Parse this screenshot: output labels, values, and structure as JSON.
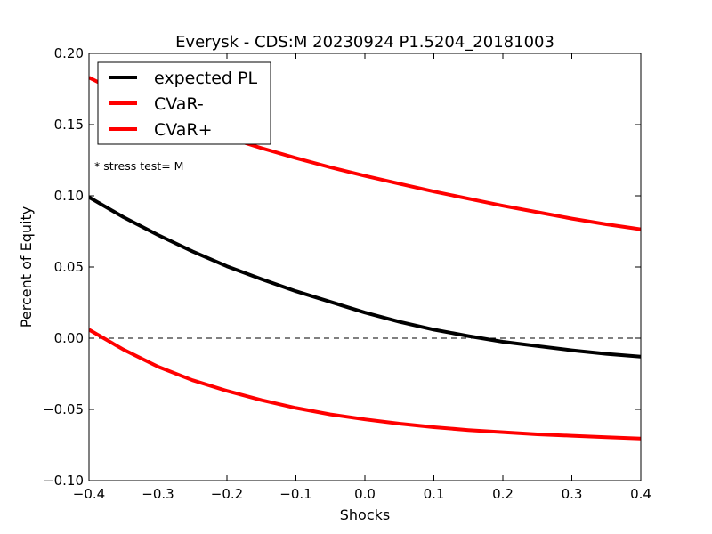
{
  "chart_data": {
    "type": "line",
    "title": "Everysk - CDS:M 20230924 P1.5204_20181003",
    "xlabel": "Shocks",
    "ylabel": "Percent of Equity",
    "xlim": [
      -0.4,
      0.4
    ],
    "ylim": [
      -0.1,
      0.2
    ],
    "xticks": [
      -0.4,
      -0.3,
      -0.2,
      -0.1,
      0.0,
      0.1,
      0.2,
      0.3,
      0.4
    ],
    "xtick_labels": [
      "−0.4",
      "−0.3",
      "−0.2",
      "−0.1",
      "0.0",
      "0.1",
      "0.2",
      "0.3",
      "0.4"
    ],
    "yticks": [
      -0.1,
      -0.05,
      0.0,
      0.05,
      0.1,
      0.15,
      0.2
    ],
    "ytick_labels": [
      "−0.10",
      "−0.05",
      "0.00",
      "0.05",
      "0.10",
      "0.15",
      "0.20"
    ],
    "grid": false,
    "legend_position": "top-left",
    "annotation": "* stress test=  M",
    "reference_line": {
      "y": 0.0,
      "style": "dashed",
      "color": "#000000"
    },
    "x": [
      -0.4,
      -0.35,
      -0.3,
      -0.25,
      -0.2,
      -0.15,
      -0.1,
      -0.05,
      0.0,
      0.05,
      0.1,
      0.15,
      0.2,
      0.25,
      0.3,
      0.35,
      0.4
    ],
    "series": [
      {
        "name": "expected PL",
        "color": "#000000",
        "values": [
          0.099,
          0.085,
          0.0725,
          0.061,
          0.0505,
          0.0415,
          0.033,
          0.0255,
          0.018,
          0.0115,
          0.006,
          0.0015,
          -0.0025,
          -0.0055,
          -0.0085,
          -0.011,
          -0.013
        ]
      },
      {
        "name": "CVaR-",
        "color": "#ff0000",
        "values": [
          0.006,
          -0.008,
          -0.02,
          -0.0295,
          -0.037,
          -0.0435,
          -0.049,
          -0.0535,
          -0.057,
          -0.06,
          -0.0625,
          -0.0645,
          -0.066,
          -0.0675,
          -0.0685,
          -0.0695,
          -0.0705
        ]
      },
      {
        "name": "CVaR+",
        "color": "#ff0000",
        "values": [
          0.183,
          0.171,
          0.16,
          0.15,
          0.141,
          0.1335,
          0.1265,
          0.12,
          0.114,
          0.1085,
          0.103,
          0.098,
          0.093,
          0.0885,
          0.084,
          0.08,
          0.0765
        ]
      }
    ]
  }
}
